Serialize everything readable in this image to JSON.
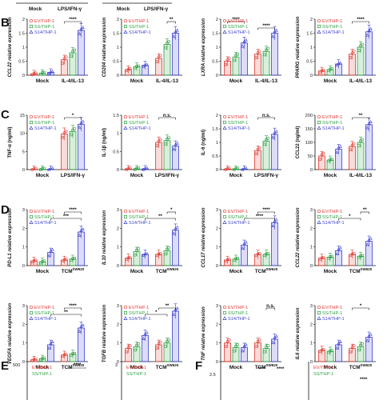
{
  "colors": {
    "ev": "#e0362e",
    "ss": "#2ea043",
    "s14": "#3b3fd1"
  },
  "legend": [
    "EV/THP-1",
    "SS/THP-1",
    "S14/THP-1"
  ],
  "panel_labels": {
    "B": "B",
    "C": "C",
    "D": "D",
    "E": "E",
    "F": "F"
  },
  "chart_data": [
    {
      "id": "ccl22-b",
      "type": "bar",
      "row": "B",
      "col": 0,
      "ylabel": "CCL22 relative expression",
      "italic": true,
      "categories": [
        "Mock",
        "IL-4/IL-13"
      ],
      "ylim": [
        0,
        2
      ],
      "yticks": [
        0,
        0.5,
        1.0,
        1.5,
        2.0
      ],
      "series": [
        {
          "name": "EV/THP-1",
          "values": [
            0.05,
            0.55
          ]
        },
        {
          "name": "SS/THP-1",
          "values": [
            0.07,
            0.8
          ]
        },
        {
          "name": "S14/THP-1",
          "values": [
            0.1,
            1.6
          ]
        }
      ],
      "sig": [
        {
          "a": [
            1,
            0
          ],
          "b": [
            1,
            2
          ],
          "label": "****"
        }
      ]
    },
    {
      "id": "cd204-b",
      "type": "bar",
      "row": "B",
      "col": 1,
      "ylabel": "CD204 relative expression",
      "italic": true,
      "categories": [
        "Mock",
        "IL-4/IL-13"
      ],
      "ylim": [
        0,
        2
      ],
      "yticks": [
        0,
        0.5,
        1.0,
        1.5,
        2.0
      ],
      "series": [
        {
          "name": "EV/THP-1",
          "values": [
            0.2,
            0.6
          ]
        },
        {
          "name": "SS/THP-1",
          "values": [
            0.3,
            1.1
          ]
        },
        {
          "name": "S14/THP-1",
          "values": [
            0.35,
            1.5
          ]
        }
      ],
      "sig": [
        {
          "a": [
            1,
            1
          ],
          "b": [
            1,
            2
          ],
          "label": "**"
        }
      ]
    },
    {
      "id": "lxra-b",
      "type": "bar",
      "row": "B",
      "col": 2,
      "ylabel": "LXRA relative expression",
      "italic": true,
      "categories": [
        "Mock",
        "IL-4/IL-13"
      ],
      "ylim": [
        0,
        2
      ],
      "yticks": [
        0,
        0.5,
        1.0,
        1.5,
        2.0
      ],
      "series": [
        {
          "name": "EV/THP-1",
          "values": [
            0.5,
            0.75
          ]
        },
        {
          "name": "SS/THP-1",
          "values": [
            0.65,
            0.85
          ]
        },
        {
          "name": "S14/THP-1",
          "values": [
            1.15,
            1.5
          ]
        }
      ],
      "sig": [
        {
          "a": [
            0,
            0
          ],
          "b": [
            0,
            2
          ],
          "label": "****"
        },
        {
          "a": [
            1,
            0
          ],
          "b": [
            1,
            2
          ],
          "label": "****"
        }
      ]
    },
    {
      "id": "pparg-b",
      "type": "bar",
      "row": "B",
      "col": 3,
      "ylabel": "PPARG relative expression",
      "italic": true,
      "categories": [
        "Mock",
        "IL-4/IL-13"
      ],
      "ylim": [
        0,
        2
      ],
      "yticks": [
        0,
        0.5,
        1.0,
        1.5,
        2.0
      ],
      "series": [
        {
          "name": "EV/THP-1",
          "values": [
            0.15,
            0.75
          ]
        },
        {
          "name": "SS/THP-1",
          "values": [
            0.2,
            1.0
          ]
        },
        {
          "name": "S14/THP-1",
          "values": [
            0.4,
            1.55
          ]
        }
      ],
      "sig": [
        {
          "a": [
            1,
            0
          ],
          "b": [
            1,
            2
          ],
          "label": "****"
        }
      ]
    },
    {
      "id": "tnfa-c",
      "type": "bar",
      "row": "C",
      "col": 0,
      "ylabel": "TNF-α (ng/ml)",
      "italic": false,
      "categories": [
        "Mock",
        "LPS/IFN-γ"
      ],
      "ylim": [
        0,
        15
      ],
      "yticks": [
        0,
        5,
        10,
        15
      ],
      "series": [
        {
          "name": "EV/THP-1",
          "values": [
            0.1,
            9.8
          ]
        },
        {
          "name": "SS/THP-1",
          "values": [
            0.1,
            10.5
          ]
        },
        {
          "name": "S14/THP-1",
          "values": [
            0.1,
            12.5
          ]
        }
      ],
      "sig": [
        {
          "a": [
            1,
            0
          ],
          "b": [
            1,
            2
          ],
          "label": "*"
        }
      ]
    },
    {
      "id": "il1b-c",
      "type": "bar",
      "row": "C",
      "col": 1,
      "ylabel": "IL-1β (ng/ml)",
      "italic": false,
      "categories": [
        "Mock",
        "LPS/IFN-γ"
      ],
      "ylim": [
        0,
        1.5
      ],
      "yticks": [
        0,
        0.5,
        1.0,
        1.5
      ],
      "series": [
        {
          "name": "EV/THP-1",
          "values": [
            0.02,
            0.75
          ]
        },
        {
          "name": "SS/THP-1",
          "values": [
            0.02,
            0.8
          ]
        },
        {
          "name": "S14/THP-1",
          "values": [
            0.02,
            0.65
          ]
        }
      ],
      "sig": [
        {
          "a": [
            1,
            0
          ],
          "b": [
            1,
            2
          ],
          "label": "n.s."
        }
      ]
    },
    {
      "id": "il6-c",
      "type": "bar",
      "row": "C",
      "col": 2,
      "ylabel": "IL-6 (ng/ml)",
      "italic": false,
      "categories": [
        "Mock",
        "LPS/IFN-γ"
      ],
      "ylim": [
        0,
        2
      ],
      "yticks": [
        0,
        0.5,
        1.0,
        1.5,
        2.0
      ],
      "series": [
        {
          "name": "EV/THP-1",
          "values": [
            0.02,
            0.7
          ]
        },
        {
          "name": "SS/THP-1",
          "values": [
            0.02,
            1.05
          ]
        },
        {
          "name": "S14/THP-1",
          "values": [
            0.02,
            1.3
          ]
        }
      ],
      "sig": [
        {
          "a": [
            1,
            0
          ],
          "b": [
            1,
            2
          ],
          "label": "n.s."
        }
      ]
    },
    {
      "id": "ccl22p-c",
      "type": "bar",
      "row": "C",
      "col": 3,
      "ylabel": "CCL22 (ng/ml)",
      "italic": false,
      "categories": [
        "Mock",
        "IL-4/IL-13"
      ],
      "ylim": [
        0,
        200
      ],
      "yticks": [
        0,
        50,
        100,
        150,
        200
      ],
      "series": [
        {
          "name": "EV/THP-1",
          "values": [
            50,
            85
          ]
        },
        {
          "name": "SS/THP-1",
          "values": [
            35,
            100
          ]
        },
        {
          "name": "S14/THP-1",
          "values": [
            75,
            165
          ]
        }
      ],
      "sig": [
        {
          "a": [
            1,
            0
          ],
          "b": [
            1,
            2
          ],
          "label": "**"
        }
      ]
    },
    {
      "id": "pdl1-d",
      "type": "bar",
      "row": "D1",
      "col": 0,
      "ylabel": "PD-L1 relative expression",
      "italic": true,
      "categories": [
        "Mock",
        "TCM"
      ],
      "cat_sup": [
        "",
        "SW620"
      ],
      "ylim": [
        0,
        3
      ],
      "yticks": [
        0,
        1,
        2,
        3
      ],
      "series": [
        {
          "name": "EV/THP-1",
          "values": [
            0.25,
            0.3
          ]
        },
        {
          "name": "SS/THP-1",
          "values": [
            0.2,
            0.35
          ]
        },
        {
          "name": "S14/THP-1",
          "values": [
            0.7,
            1.8
          ]
        }
      ],
      "sig": [
        {
          "a": [
            1,
            0
          ],
          "b": [
            1,
            2
          ],
          "label": "****"
        },
        {
          "a": [
            0,
            2
          ],
          "b": [
            1,
            2
          ],
          "label": "***"
        }
      ]
    },
    {
      "id": "il10-d",
      "type": "bar",
      "row": "D1",
      "col": 1,
      "ylabel": "IL10 relative expression",
      "italic": true,
      "categories": [
        "Mock",
        "TCM"
      ],
      "cat_sup": [
        "",
        "SW620"
      ],
      "ylim": [
        0,
        3
      ],
      "yticks": [
        0,
        1,
        2,
        3
      ],
      "series": [
        {
          "name": "EV/THP-1",
          "values": [
            0.4,
            0.6
          ]
        },
        {
          "name": "SS/THP-1",
          "values": [
            0.75,
            0.8
          ]
        },
        {
          "name": "S14/THP-1",
          "values": [
            0.6,
            1.9
          ]
        }
      ],
      "sig": [
        {
          "a": [
            1,
            1
          ],
          "b": [
            1,
            2
          ],
          "label": "*"
        },
        {
          "a": [
            0,
            2
          ],
          "b": [
            1,
            2
          ],
          "label": "**"
        }
      ]
    },
    {
      "id": "ccl17-d",
      "type": "bar",
      "row": "D1",
      "col": 2,
      "ylabel": "CCL17 relative expression",
      "italic": true,
      "categories": [
        "Mock",
        "TCM"
      ],
      "cat_sup": [
        "",
        "SW620"
      ],
      "ylim": [
        0,
        3
      ],
      "yticks": [
        0,
        1,
        2,
        3
      ],
      "series": [
        {
          "name": "EV/THP-1",
          "values": [
            0.3,
            0.6
          ]
        },
        {
          "name": "SS/THP-1",
          "values": [
            0.35,
            0.6
          ]
        },
        {
          "name": "S14/THP-1",
          "values": [
            1.1,
            2.3
          ]
        }
      ],
      "sig": [
        {
          "a": [
            1,
            0
          ],
          "b": [
            1,
            2
          ],
          "label": "****"
        },
        {
          "a": [
            0,
            2
          ],
          "b": [
            1,
            2
          ],
          "label": "****"
        }
      ]
    },
    {
      "id": "ccl22-d",
      "type": "bar",
      "row": "D1",
      "col": 3,
      "ylabel": "CCL22 relative expression",
      "italic": true,
      "categories": [
        "Mock",
        "TCM"
      ],
      "cat_sup": [
        "",
        "SW620"
      ],
      "ylim": [
        0,
        3
      ],
      "yticks": [
        0,
        1,
        2,
        3
      ],
      "series": [
        {
          "name": "EV/THP-1",
          "values": [
            0.4,
            0.6
          ]
        },
        {
          "name": "SS/THP-1",
          "values": [
            0.45,
            0.5
          ]
        },
        {
          "name": "S14/THP-1",
          "values": [
            0.8,
            1.3
          ]
        }
      ],
      "sig": [
        {
          "a": [
            1,
            1
          ],
          "b": [
            1,
            2
          ],
          "label": "**"
        },
        {
          "a": [
            0,
            2
          ],
          "b": [
            1,
            1
          ],
          "label": "*"
        }
      ]
    },
    {
      "id": "vegfa-d",
      "type": "bar",
      "row": "D2",
      "col": 0,
      "ylabel": "VEGFA relative expression",
      "italic": true,
      "categories": [
        "Mock",
        "TCM"
      ],
      "cat_sup": [
        "",
        "SW620"
      ],
      "ylim": [
        0,
        3
      ],
      "yticks": [
        0,
        1,
        2,
        3
      ],
      "series": [
        {
          "name": "EV/THP-1",
          "values": [
            0.1,
            0.35
          ]
        },
        {
          "name": "SS/THP-1",
          "values": [
            0.15,
            0.4
          ]
        },
        {
          "name": "S14/THP-1",
          "values": [
            0.9,
            1.8
          ]
        }
      ],
      "sig": [
        {
          "a": [
            1,
            0
          ],
          "b": [
            1,
            2
          ],
          "label": "****"
        },
        {
          "a": [
            0,
            2
          ],
          "b": [
            1,
            2
          ],
          "label": "**"
        }
      ]
    },
    {
      "id": "tgfb-d",
      "type": "bar",
      "row": "D2",
      "col": 1,
      "ylabel": "TGFB relative expression",
      "italic": true,
      "categories": [
        "Mock",
        "TCM"
      ],
      "cat_sup": [
        "",
        "SW620"
      ],
      "ylim": [
        0,
        3
      ],
      "yticks": [
        0,
        1,
        2,
        3
      ],
      "series": [
        {
          "name": "EV/THP-1",
          "values": [
            0.7,
            0.9
          ]
        },
        {
          "name": "SS/THP-1",
          "values": [
            0.8,
            1.0
          ]
        },
        {
          "name": "S14/THP-1",
          "values": [
            1.4,
            2.7
          ]
        }
      ],
      "sig": [
        {
          "a": [
            1,
            0
          ],
          "b": [
            1,
            2
          ],
          "label": "**"
        },
        {
          "a": [
            0,
            2
          ],
          "b": [
            1,
            1
          ],
          "label": "*"
        }
      ]
    },
    {
      "id": "tnf-d",
      "type": "bar",
      "row": "D2",
      "col": 2,
      "ylabel": "TNF relative expression",
      "italic": true,
      "categories": [
        "Mock",
        "TCM"
      ],
      "cat_sup": [
        "",
        "SW620"
      ],
      "ylim": [
        0,
        3
      ],
      "yticks": [
        0,
        1,
        2,
        3
      ],
      "series": [
        {
          "name": "EV/THP-1",
          "values": [
            1.0,
            1.0
          ]
        },
        {
          "name": "SS/THP-1",
          "values": [
            0.75,
            0.7
          ]
        },
        {
          "name": "S14/THP-1",
          "values": [
            0.75,
            1.2
          ]
        }
      ],
      "sig": [
        {
          "a": [
            1,
            1
          ],
          "b": [
            1,
            2
          ],
          "label": "n.s."
        }
      ]
    },
    {
      "id": "il6-d",
      "type": "bar",
      "row": "D2",
      "col": 3,
      "ylabel": "IL6 relative expression",
      "italic": true,
      "categories": [
        "Mock",
        "TCM"
      ],
      "cat_sup": [
        "",
        "SW620"
      ],
      "ylim": [
        0,
        3
      ],
      "yticks": [
        0,
        1,
        2,
        3
      ],
      "series": [
        {
          "name": "EV/THP-1",
          "values": [
            0.6,
            0.7
          ]
        },
        {
          "name": "SS/THP-1",
          "values": [
            0.55,
            0.8
          ]
        },
        {
          "name": "S14/THP-1",
          "values": [
            0.9,
            1.3
          ]
        }
      ],
      "sig": [
        {
          "a": [
            1,
            0
          ],
          "b": [
            1,
            2
          ],
          "label": "*"
        }
      ]
    }
  ],
  "fragments": {
    "top_labels": [
      "Mock",
      "LPS/IFN-γ"
    ],
    "e_tick_500": "500",
    "e_tick_3": "3",
    "f_tick": "2.5",
    "sig_e": "****",
    "sig_f1": "****",
    "sig_f2": "****"
  }
}
